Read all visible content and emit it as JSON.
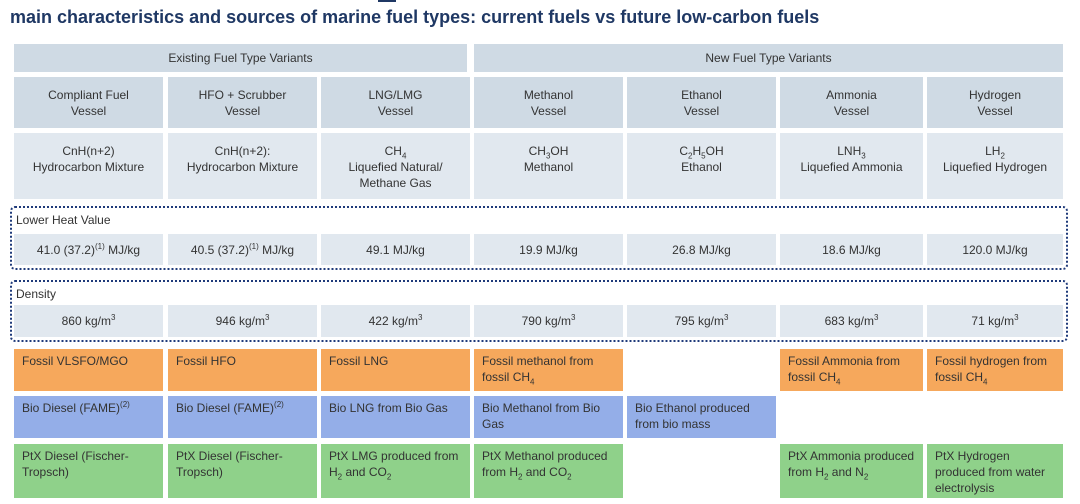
{
  "title": "main characteristics and sources of marine fuel types: current fuels vs future low-carbon fuels",
  "groups": {
    "existing": "Existing Fuel Type Variants",
    "new": "New Fuel Type Variants"
  },
  "vessels": [
    {
      "line1": "Compliant Fuel",
      "line2": "Vessel"
    },
    {
      "line1": "HFO + Scrubber",
      "line2": "Vessel"
    },
    {
      "line1": "LNG/LMG",
      "line2": "Vessel"
    },
    {
      "line1": "Methanol",
      "line2": "Vessel"
    },
    {
      "line1": "Ethanol",
      "line2": "Vessel"
    },
    {
      "line1": "Ammonia",
      "line2": "Vessel"
    },
    {
      "line1": "Hydrogen",
      "line2": "Vessel"
    }
  ],
  "composition": [
    {
      "formula": "CnH(n+2)",
      "name": "Hydrocarbon Mixture",
      "name2": ""
    },
    {
      "formula": "CnH(n+2):",
      "name": "Hydrocarbon Mixture",
      "name2": ""
    },
    {
      "formula": "CH4",
      "name": "Liquefied Natural/",
      "name2": "Methane Gas"
    },
    {
      "formula": "CH3OH",
      "name": "Methanol",
      "name2": ""
    },
    {
      "formula": "C2H5OH",
      "name": "Ethanol",
      "name2": ""
    },
    {
      "formula": "LNH3",
      "name": "Liquefied Ammonia",
      "name2": ""
    },
    {
      "formula": "LH2",
      "name": "Liquefied Hydrogen",
      "name2": ""
    }
  ],
  "lower_heat_value": {
    "label": "Lower Heat Value",
    "values": [
      "41.0 (37.2)(1) MJ/kg",
      "40.5 (37.2)(1) MJ/kg",
      "49.1 MJ/kg",
      "19.9 MJ/kg",
      "26.8 MJ/kg",
      "18.6 MJ/kg",
      "120.0 MJ/kg"
    ]
  },
  "density": {
    "label": "Density",
    "values": [
      "860 kg/m3",
      "946 kg/m3",
      "422 kg/m3",
      "790 kg/m3",
      "795 kg/m3",
      "683 kg/m3",
      "71 kg/m3"
    ]
  },
  "sources": {
    "fossil": [
      "Fossil VLSFO/MGO",
      "Fossil HFO",
      "Fossil LNG",
      "Fossil methanol from fossil CH4",
      "",
      "Fossil Ammonia from fossil CH4",
      "Fossil hydrogen from fossil CH4"
    ],
    "bio": [
      "Bio Diesel (FAME)(2)",
      "Bio Diesel (FAME)(2)",
      "Bio LNG from Bio Gas",
      "Bio Methanol from Bio Gas",
      "Bio Ethanol produced from bio mass",
      "",
      ""
    ],
    "ptx": [
      "PtX Diesel (Fischer-Tropsch)",
      "PtX Diesel (Fischer-Tropsch)",
      "PtX LMG produced from H2 and CO2",
      "PtX Methanol produced from H2 and CO2",
      "",
      "PtX Ammonia produced from H2 and N2",
      "PtX Hydrogen produced from water electrolysis"
    ]
  },
  "colors": {
    "title": "#1f3864",
    "header_fill": "#cfdae4",
    "value_fill": "#e1e8ef",
    "fossil": "#f6a85c",
    "bio": "#94aee8",
    "ptx": "#8fd18a",
    "dotted_border": "#1f3a7a"
  }
}
